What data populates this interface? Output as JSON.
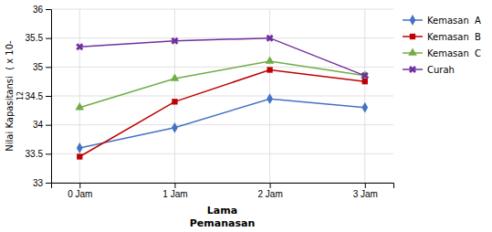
{
  "chart_data": {
    "type": "line",
    "x_label": "Lama\nPemanasan",
    "y_label": "Nilai Kapasitansi  ( x 10-\n12",
    "categories": [
      "0 Jam",
      "1 Jam",
      "2 Jam",
      "3 Jam"
    ],
    "series": [
      {
        "name": "Kemasan  A",
        "color": "#4472c4",
        "marker": "diamond",
        "values": [
          33.6,
          33.95,
          34.45,
          34.3
        ]
      },
      {
        "name": "Kemasan  B",
        "color": "#c00000",
        "marker": "square",
        "values": [
          33.45,
          34.4,
          34.95,
          34.75
        ]
      },
      {
        "name": "Kemasan  C",
        "color": "#70ad47",
        "marker": "triangle",
        "values": [
          34.3,
          34.8,
          35.1,
          34.85
        ]
      },
      {
        "name": "Curah",
        "color": "#7030a0",
        "marker": "x",
        "values": [
          35.35,
          35.45,
          35.5,
          34.85
        ]
      }
    ],
    "ylim": [
      33.0,
      36.0
    ],
    "yticks": [
      33.0,
      33.5,
      34.0,
      34.5,
      35.0,
      35.5,
      36.0
    ],
    "grid": true,
    "legend": "right"
  }
}
